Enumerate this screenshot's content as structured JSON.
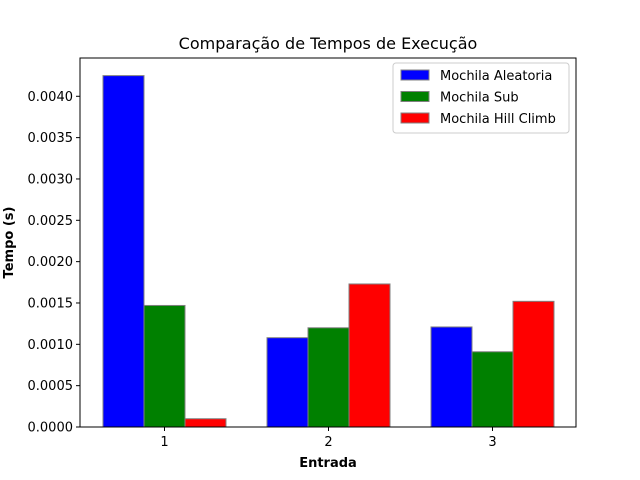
{
  "chart_data": {
    "type": "bar",
    "title": "Comparação de Tempos de Execução",
    "xlabel": "Entrada",
    "ylabel": "Tempo (s)",
    "categories": [
      "1",
      "2",
      "3"
    ],
    "series": [
      {
        "name": "Mochila Aleatoria",
        "color": "#0000ff",
        "values": [
          0.00425,
          0.00108,
          0.00121
        ]
      },
      {
        "name": "Mochila Sub",
        "color": "#008000",
        "values": [
          0.00147,
          0.0012,
          0.00091
        ]
      },
      {
        "name": "Mochila Hill Climb",
        "color": "#ff0000",
        "values": [
          0.0001,
          0.00173,
          0.00152
        ]
      }
    ],
    "ylim": [
      0,
      0.004463
    ],
    "yticks": [
      "0.0000",
      "0.0005",
      "0.0010",
      "0.0015",
      "0.0020",
      "0.0025",
      "0.0030",
      "0.0035",
      "0.0040"
    ],
    "grid": false,
    "legend_position": "top-right"
  }
}
